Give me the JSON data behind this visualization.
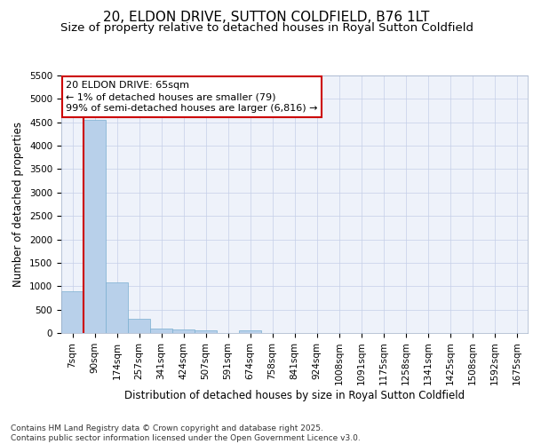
{
  "title": "20, ELDON DRIVE, SUTTON COLDFIELD, B76 1LT",
  "subtitle": "Size of property relative to detached houses in Royal Sutton Coldfield",
  "xlabel": "Distribution of detached houses by size in Royal Sutton Coldfield",
  "ylabel": "Number of detached properties",
  "categories": [
    "7sqm",
    "90sqm",
    "174sqm",
    "257sqm",
    "341sqm",
    "424sqm",
    "507sqm",
    "591sqm",
    "674sqm",
    "758sqm",
    "841sqm",
    "924sqm",
    "1008sqm",
    "1091sqm",
    "1175sqm",
    "1258sqm",
    "1341sqm",
    "1425sqm",
    "1508sqm",
    "1592sqm",
    "1675sqm"
  ],
  "values": [
    900,
    4560,
    1080,
    300,
    90,
    70,
    60,
    0,
    55,
    0,
    0,
    0,
    0,
    0,
    0,
    0,
    0,
    0,
    0,
    0,
    0
  ],
  "bar_color": "#b8d0ea",
  "bar_edge_color": "#7aaed0",
  "highlight_color": "#cc0000",
  "annotation_text": "20 ELDON DRIVE: 65sqm\n← 1% of detached houses are smaller (79)\n99% of semi-detached houses are larger (6,816) →",
  "annotation_box_color": "#cc0000",
  "ylim": [
    0,
    5500
  ],
  "yticks": [
    0,
    500,
    1000,
    1500,
    2000,
    2500,
    3000,
    3500,
    4000,
    4500,
    5000,
    5500
  ],
  "background_color": "#ffffff",
  "plot_bg_color": "#eef2fa",
  "grid_color": "#c5cfe8",
  "footer": "Contains HM Land Registry data © Crown copyright and database right 2025.\nContains public sector information licensed under the Open Government Licence v3.0.",
  "title_fontsize": 11,
  "subtitle_fontsize": 9.5,
  "axis_label_fontsize": 8.5,
  "tick_fontsize": 7.5,
  "footer_fontsize": 6.5,
  "annotation_fontsize": 8
}
